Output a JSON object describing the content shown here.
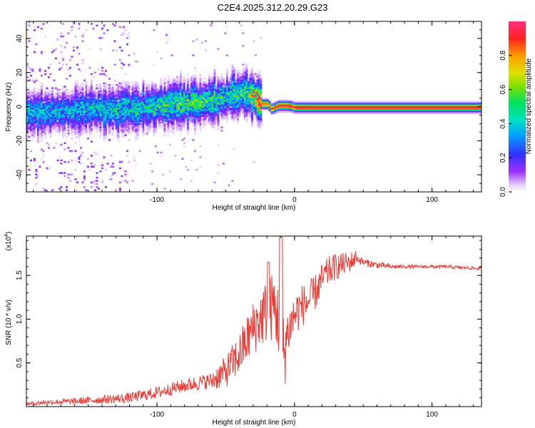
{
  "title": "C2E4.2025.312.20.29.G23",
  "colors": {
    "snr_line": "#ee3a35",
    "axis": "#000000",
    "background": "#ffffff"
  },
  "chart_data": [
    {
      "type": "heatmap",
      "name": "spectrogram",
      "xlabel": "Height of straight line (km)",
      "ylabel": "Frequency (Hz)",
      "xlim": [
        -195,
        136
      ],
      "ylim": [
        -50,
        50
      ],
      "x_ticks": [
        -100,
        0,
        100
      ],
      "x_tick_labels": [
        "-100",
        "0",
        "100"
      ],
      "y_ticks": [
        -40,
        -20,
        0,
        20,
        40
      ],
      "y_tick_labels": [
        "-40",
        "-20",
        "0",
        "20",
        "40"
      ],
      "colorbar": {
        "label": "Normalized spectral amplitude",
        "range": [
          0,
          1
        ],
        "ticks": [
          0.0,
          0.2,
          0.4,
          0.6,
          0.8
        ],
        "tick_labels": [
          "0.0",
          "0.2",
          "0.4",
          "0.6",
          "0.8"
        ],
        "colormap": "rainbow (white-violet-blue-cyan-green-yellow-orange-red-magenta)"
      },
      "ridge": {
        "x": [
          -190,
          -160,
          -130,
          -110,
          -90,
          -70,
          -55,
          -45,
          -35,
          -28,
          -25,
          -20,
          -17,
          -12,
          -5,
          0,
          10,
          50,
          136
        ],
        "frequency_hz": [
          -3,
          -2,
          -1,
          0,
          2,
          3,
          5,
          7,
          8,
          5,
          2,
          2,
          -1,
          1,
          1,
          0,
          0,
          0,
          0
        ],
        "peak_amplitude": [
          0.35,
          0.35,
          0.4,
          0.4,
          0.5,
          0.5,
          0.45,
          0.45,
          0.5,
          0.85,
          0.85,
          0.85,
          0.9,
          0.95,
          0.95,
          0.95,
          0.95,
          0.95,
          0.95
        ]
      }
    },
    {
      "type": "line",
      "name": "snr",
      "xlabel": "Height of straight line (km)",
      "ylabel": "SNR (10 * v/v)",
      "multiplier_label": "(x10",
      "multiplier_exp": "4",
      "multiplier_close": ")",
      "xlim": [
        -195,
        136
      ],
      "ylim": [
        0,
        1.95
      ],
      "x_ticks": [
        -100,
        0,
        100
      ],
      "x_tick_labels": [
        "-100",
        "0",
        "100"
      ],
      "y_ticks": [
        0.5,
        1.0,
        1.5
      ],
      "y_tick_labels": [
        "0.5",
        "1.0",
        "1.5"
      ],
      "series": [
        {
          "name": "SNR",
          "x": [
            -195,
            -180,
            -160,
            -140,
            -120,
            -110,
            -100,
            -90,
            -80,
            -70,
            -60,
            -50,
            -45,
            -40,
            -35,
            -30,
            -25,
            -20,
            -15,
            -10,
            -8,
            -5,
            0,
            5,
            10,
            15,
            20,
            25,
            30,
            40,
            45,
            50,
            60,
            70,
            80,
            90,
            100,
            110,
            120,
            136
          ],
          "values": [
            0.03,
            0.05,
            0.06,
            0.08,
            0.1,
            0.13,
            0.16,
            0.2,
            0.24,
            0.27,
            0.3,
            0.4,
            0.5,
            0.6,
            0.75,
            0.9,
            1.0,
            1.1,
            1.15,
            0.9,
            0.6,
            0.85,
            1.05,
            1.15,
            1.2,
            1.3,
            1.45,
            1.55,
            1.6,
            1.65,
            1.7,
            1.65,
            1.62,
            1.6,
            1.6,
            1.6,
            1.6,
            1.6,
            1.59,
            1.58
          ]
        }
      ]
    }
  ]
}
